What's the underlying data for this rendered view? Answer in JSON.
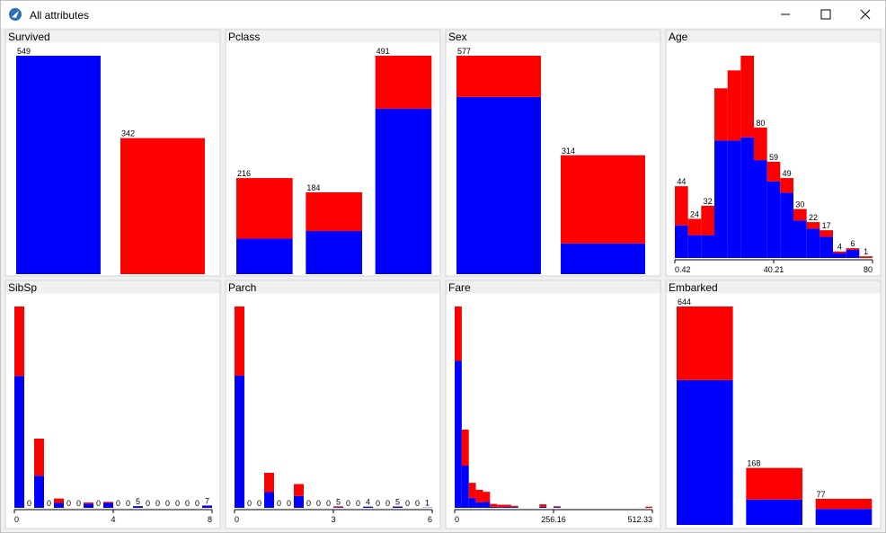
{
  "window": {
    "title": "All attributes"
  },
  "chart_data": [
    {
      "type": "bar",
      "title": "Survived",
      "series": [
        {
          "color": "#0000ff",
          "values": [
            549,
            0
          ]
        },
        {
          "color": "#ff0000",
          "values": [
            0,
            342
          ]
        }
      ],
      "totals": [
        549,
        342
      ]
    },
    {
      "type": "bar",
      "title": "Pclass",
      "series": [
        {
          "color": "#0000ff",
          "values": [
            80,
            97,
            372
          ]
        },
        {
          "color": "#ff0000",
          "values": [
            136,
            87,
            119
          ]
        }
      ],
      "totals": [
        216,
        184,
        491
      ]
    },
    {
      "type": "bar",
      "title": "Sex",
      "series": [
        {
          "color": "#0000ff",
          "values": [
            468,
            81
          ]
        },
        {
          "color": "#ff0000",
          "values": [
            109,
            233
          ]
        }
      ],
      "totals": [
        577,
        314
      ]
    },
    {
      "type": "histogram",
      "title": "Age",
      "bins": [
        0.42,
        5.73,
        11.03,
        16.34,
        21.64,
        26.95,
        32.25,
        37.56,
        42.86,
        48.17,
        53.47,
        58.79,
        64.08,
        69.39,
        74.69,
        80
      ],
      "xlim": [
        0.42,
        80
      ],
      "xticks": [
        0.42,
        40.21,
        80
      ],
      "series": [
        {
          "color": "#0000ff",
          "values": [
            20,
            14,
            14,
            72,
            72,
            74,
            60,
            47,
            40,
            23,
            18,
            13,
            3,
            5,
            0
          ]
        },
        {
          "color": "#ff0000",
          "values": [
            24,
            10,
            18,
            32,
            43,
            50,
            20,
            12,
            9,
            7,
            4,
            4,
            1,
            1,
            1
          ]
        }
      ],
      "totals": [
        44,
        24,
        32,
        null,
        null,
        null,
        80,
        59,
        49,
        30,
        22,
        17,
        4,
        6,
        1
      ]
    },
    {
      "type": "histogram",
      "title": "SibSp",
      "bins": [
        0,
        0.4,
        0.8,
        1.2,
        1.6,
        2,
        2.4,
        2.8,
        3.2,
        3.6,
        4,
        4.4,
        4.8,
        5.2,
        5.6,
        6,
        6.4,
        6.8,
        7.2,
        7.6,
        8
      ],
      "xlim": [
        0,
        8
      ],
      "xticks": [
        0,
        4,
        8
      ],
      "series": [
        {
          "color": "#0000ff",
          "values": [
            398,
            0,
            97,
            0,
            15,
            0,
            0,
            12,
            0,
            15,
            0,
            0,
            5,
            0,
            0,
            0,
            0,
            0,
            0,
            7
          ]
        },
        {
          "color": "#ff0000",
          "values": [
            210,
            0,
            112,
            0,
            13,
            0,
            0,
            4,
            0,
            3,
            0,
            0,
            0,
            0,
            0,
            0,
            0,
            0,
            0,
            0
          ]
        }
      ],
      "totals": [
        null,
        0,
        null,
        0,
        null,
        0,
        0,
        null,
        0,
        null,
        0,
        0,
        5,
        0,
        0,
        0,
        0,
        0,
        0,
        7
      ]
    },
    {
      "type": "histogram",
      "title": "Parch",
      "bins": [
        0,
        0.3,
        0.6,
        0.9,
        1.2,
        1.5,
        1.8,
        2.1,
        2.4,
        2.7,
        3,
        3.3,
        3.6,
        3.9,
        4.2,
        4.5,
        4.8,
        5.1,
        5.4,
        5.7,
        6
      ],
      "xlim": [
        0,
        6
      ],
      "xticks": [
        0,
        3,
        6
      ],
      "series": [
        {
          "color": "#0000ff",
          "values": [
            445,
            0,
            0,
            53,
            0,
            0,
            40,
            0,
            0,
            0,
            2,
            0,
            0,
            4,
            0,
            0,
            4,
            0,
            0,
            1
          ]
        },
        {
          "color": "#ff0000",
          "values": [
            233,
            0,
            0,
            65,
            0,
            0,
            40,
            0,
            0,
            0,
            3,
            0,
            0,
            0,
            0,
            0,
            1,
            0,
            0,
            0
          ]
        }
      ],
      "totals": [
        null,
        0,
        0,
        null,
        0,
        0,
        null,
        0,
        0,
        0,
        5,
        0,
        0,
        4,
        0,
        0,
        5,
        0,
        0,
        1
      ]
    },
    {
      "type": "histogram",
      "title": "Fare",
      "bins": [
        0,
        18.3,
        36.6,
        54.9,
        73.2,
        91.5,
        109.8,
        128.1,
        146.4,
        164.7,
        183.0,
        201.3,
        219.6,
        237.9,
        256.2,
        274.5,
        292.8,
        311.1,
        329.4,
        347.6,
        365.9,
        384.2,
        402.5,
        420.8,
        439.1,
        457.4,
        475.7,
        494.0,
        512.33
      ],
      "xlim": [
        0,
        512.33
      ],
      "xticks": [
        0,
        256.16,
        512.33
      ],
      "series": [
        {
          "color": "#0000ff",
          "values": [
            376,
            108,
            25,
            14,
            15,
            3,
            2,
            3,
            2,
            0,
            0,
            0,
            3,
            0,
            2,
            0,
            0,
            0,
            0,
            0,
            0,
            0,
            0,
            0,
            0,
            0,
            0,
            0
          ]
        },
        {
          "color": "#ff0000",
          "values": [
            139,
            92,
            39,
            32,
            26,
            7,
            6,
            5,
            3,
            0,
            0,
            0,
            6,
            0,
            2,
            0,
            0,
            0,
            0,
            0,
            0,
            0,
            0,
            0,
            0,
            0,
            0,
            3
          ]
        }
      ]
    },
    {
      "type": "bar",
      "title": "Embarked",
      "series": [
        {
          "color": "#0000ff",
          "values": [
            427,
            75,
            47
          ]
        },
        {
          "color": "#ff0000",
          "values": [
            217,
            93,
            30
          ]
        }
      ],
      "totals": [
        644,
        168,
        77
      ]
    }
  ]
}
